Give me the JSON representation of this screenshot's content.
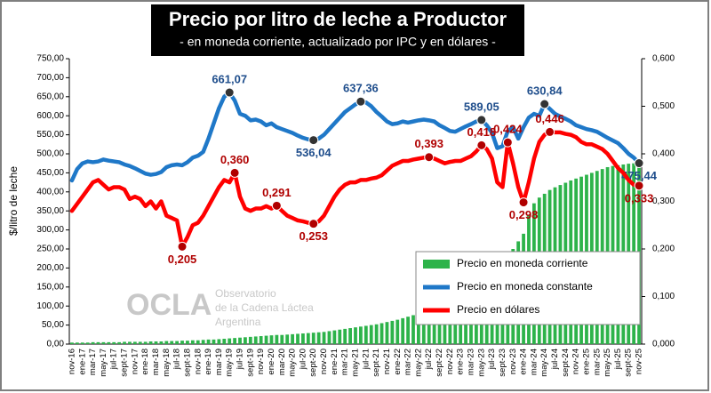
{
  "chart_data": {
    "type": "bar-line",
    "title": "Precio por litro de leche a Productor",
    "subtitle": "- en moneda corriente, actualizado por IPC y en dólares -",
    "y_label": "$/litro de leche",
    "legend": "lower right",
    "watermark": {
      "logo": "OCLA",
      "lines": [
        "Observatorio",
        "de la Cadena Láctea",
        "Argentina"
      ]
    },
    "categories": [
      "nov-16",
      null,
      "ene-17",
      null,
      "mar-17",
      null,
      "may-17",
      null,
      "jul-17",
      null,
      "sept-17",
      null,
      "nov-17",
      null,
      "ene-18",
      null,
      "mar-18",
      null,
      "may-18",
      null,
      "jul-18",
      null,
      "sept-18",
      null,
      "nov-18",
      null,
      "ene-19",
      null,
      "mar-19",
      null,
      "may-19",
      null,
      "jul-19",
      null,
      "sept-19",
      null,
      "nov-19",
      null,
      "ene-20",
      null,
      "mar-20",
      null,
      "may-20",
      null,
      "jul-20",
      null,
      "sept-20",
      null,
      "nov-20",
      null,
      "ene-21",
      null,
      "mar-21",
      null,
      "may-21",
      null,
      "jul-21",
      null,
      "sept-21",
      null,
      "nov-21",
      null,
      "ene-22",
      null,
      "mar-22",
      null,
      "may-22",
      null,
      "jul-22",
      null,
      "sept-22",
      null,
      "nov-22",
      null,
      "ene-23",
      null,
      "mar-23",
      null,
      "may-23",
      null,
      "jul-23",
      null,
      "sept-23",
      null,
      "nov-23",
      null,
      "ene-24",
      null,
      "mar-24",
      null,
      "may-24",
      null,
      "jul-24",
      null,
      "sept-24",
      null,
      "nov-24",
      null,
      "ene-25",
      null,
      "mar-25",
      null,
      "may-25",
      null,
      "jul-25",
      null,
      "sept-25",
      null,
      "nov-25"
    ],
    "series": [
      {
        "name": "Precio en moneda corriente",
        "kind": "bar",
        "color": "#2db34a",
        "values": [
          4,
          4,
          4,
          4,
          5,
          5,
          5,
          5,
          5,
          5,
          6,
          6,
          6,
          6,
          6,
          7,
          7,
          7,
          8,
          8,
          8,
          9,
          9,
          10,
          10,
          11,
          12,
          12,
          13,
          14,
          15,
          16,
          17,
          18,
          19,
          20,
          21,
          22,
          23,
          24,
          24,
          25,
          26,
          27,
          28,
          29,
          30,
          31,
          32,
          34,
          36,
          38,
          40,
          42,
          44,
          46,
          48,
          50,
          52,
          55,
          58,
          61,
          64,
          68,
          72,
          76,
          80,
          85,
          90,
          95,
          100,
          106,
          112,
          118,
          125,
          133,
          141,
          150,
          160,
          172,
          185,
          210,
          222,
          235,
          250,
          270,
          290,
          340,
          370,
          385,
          395,
          405,
          412,
          418,
          424,
          430,
          435,
          440,
          445,
          450,
          455,
          460,
          465,
          468,
          470,
          472,
          474,
          475,
          475
        ]
      },
      {
        "name": "Precio en moneda constante",
        "kind": "line",
        "color": "#1f78c8",
        "marker_color": "#333333",
        "label_color": "#1f4e8c",
        "values": [
          430,
          460,
          475,
          480,
          478,
          480,
          485,
          482,
          480,
          478,
          472,
          468,
          462,
          455,
          448,
          445,
          447,
          452,
          465,
          470,
          472,
          470,
          478,
          490,
          495,
          505,
          540,
          580,
          620,
          650,
          661.07,
          640,
          605,
          600,
          588,
          590,
          585,
          575,
          580,
          570,
          565,
          560,
          555,
          548,
          542,
          538,
          536.04,
          540,
          550,
          565,
          580,
          595,
          610,
          620,
          630,
          637.36,
          635,
          625,
          610,
          598,
          585,
          578,
          580,
          585,
          582,
          585,
          588,
          590,
          588,
          585,
          575,
          568,
          560,
          558,
          565,
          572,
          578,
          585,
          589.05,
          575,
          555,
          515,
          520,
          560,
          570,
          540,
          570,
          595,
          605,
          600,
          630.84,
          618,
          605,
          598,
          592,
          585,
          575,
          570,
          565,
          562,
          558,
          550,
          542,
          535,
          528,
          515,
          500,
          490,
          475.44
        ],
        "value_labels": [
          null,
          null,
          null,
          null,
          null,
          null,
          null,
          null,
          null,
          null,
          null,
          null,
          null,
          null,
          null,
          null,
          null,
          null,
          null,
          null,
          null,
          null,
          null,
          null,
          null,
          null,
          null,
          null,
          null,
          null,
          "661,07",
          null,
          null,
          null,
          null,
          null,
          null,
          null,
          null,
          null,
          null,
          null,
          null,
          null,
          null,
          null,
          "536,04",
          null,
          null,
          null,
          null,
          null,
          null,
          null,
          null,
          "637,36",
          null,
          null,
          null,
          null,
          null,
          null,
          null,
          null,
          null,
          null,
          null,
          null,
          null,
          null,
          null,
          null,
          null,
          null,
          null,
          null,
          null,
          null,
          "589,05",
          null,
          null,
          null,
          null,
          null,
          null,
          null,
          null,
          null,
          null,
          null,
          "630,84",
          null,
          null,
          null,
          null,
          null,
          null,
          null,
          null,
          null,
          null,
          null,
          null,
          null,
          null,
          null,
          null,
          null,
          "475,44"
        ]
      },
      {
        "name": "Precio en dólares",
        "kind": "line",
        "axis": "y2",
        "color": "#ff0000",
        "marker_color": "#b00000",
        "label_color": "#b00000",
        "values": [
          0.28,
          0.295,
          0.31,
          0.325,
          0.34,
          0.345,
          0.335,
          0.325,
          0.33,
          0.33,
          0.325,
          0.305,
          0.31,
          0.305,
          0.29,
          0.3,
          0.285,
          0.3,
          0.27,
          0.265,
          0.26,
          0.205,
          0.225,
          0.25,
          0.255,
          0.27,
          0.29,
          0.31,
          0.33,
          0.345,
          0.34,
          0.36,
          0.31,
          0.285,
          0.28,
          0.285,
          0.285,
          0.29,
          0.285,
          0.291,
          0.28,
          0.27,
          0.265,
          0.26,
          0.258,
          0.255,
          0.253,
          0.258,
          0.27,
          0.29,
          0.31,
          0.325,
          0.335,
          0.34,
          0.34,
          0.345,
          0.345,
          0.348,
          0.35,
          0.355,
          0.365,
          0.375,
          0.38,
          0.385,
          0.385,
          0.388,
          0.39,
          0.392,
          0.393,
          0.39,
          0.385,
          0.38,
          0.383,
          0.385,
          0.385,
          0.39,
          0.395,
          0.405,
          0.418,
          0.41,
          0.39,
          0.34,
          0.33,
          0.424,
          0.38,
          0.33,
          0.298,
          0.34,
          0.39,
          0.425,
          0.44,
          0.446,
          0.445,
          0.445,
          0.442,
          0.44,
          0.435,
          0.425,
          0.42,
          0.42,
          0.415,
          0.41,
          0.4,
          0.385,
          0.37,
          0.36,
          0.345,
          0.335,
          0.333
        ],
        "value_labels": [
          null,
          null,
          null,
          null,
          null,
          null,
          null,
          null,
          null,
          null,
          null,
          null,
          null,
          null,
          null,
          null,
          null,
          null,
          null,
          null,
          null,
          "0,205",
          null,
          null,
          null,
          null,
          null,
          null,
          null,
          null,
          null,
          "0,360",
          null,
          null,
          null,
          null,
          null,
          null,
          null,
          "0,291",
          null,
          null,
          null,
          null,
          null,
          null,
          "0,253",
          null,
          null,
          null,
          null,
          null,
          null,
          null,
          null,
          null,
          null,
          null,
          null,
          null,
          null,
          null,
          null,
          null,
          null,
          null,
          null,
          null,
          "0,393",
          null,
          null,
          null,
          null,
          null,
          null,
          null,
          null,
          null,
          "0,418",
          null,
          null,
          null,
          null,
          "0,424",
          null,
          null,
          "0,298",
          null,
          null,
          null,
          null,
          "0,446",
          null,
          null,
          null,
          null,
          null,
          null,
          null,
          null,
          null,
          null,
          null,
          null,
          null,
          null,
          null,
          null,
          "0,333"
        ]
      }
    ],
    "ylim": [
      0,
      750
    ],
    "yticks": [
      {
        "value": 0,
        "label": "0,00"
      },
      {
        "value": 50,
        "label": "50,00"
      },
      {
        "value": 100,
        "label": "100,00"
      },
      {
        "value": 150,
        "label": "150,00"
      },
      {
        "value": 200,
        "label": "200,00"
      },
      {
        "value": 250,
        "label": "250,00"
      },
      {
        "value": 300,
        "label": "300,00"
      },
      {
        "value": 350,
        "label": "350,00"
      },
      {
        "value": 400,
        "label": "400,00"
      },
      {
        "value": 450,
        "label": "450,00"
      },
      {
        "value": 500,
        "label": "500,00"
      },
      {
        "value": 550,
        "label": "550,00"
      },
      {
        "value": 600,
        "label": "600,00"
      },
      {
        "value": 650,
        "label": "650,00"
      },
      {
        "value": 700,
        "label": "700,00"
      },
      {
        "value": 750,
        "label": "750,00"
      }
    ],
    "y2lim": [
      0,
      0.6
    ],
    "y2ticks": [
      {
        "value": 0,
        "label": "0,000"
      },
      {
        "value": 0.1,
        "label": "0,100"
      },
      {
        "value": 0.2,
        "label": "0,200"
      },
      {
        "value": 0.3,
        "label": "0,300"
      },
      {
        "value": 0.4,
        "label": "0,400"
      },
      {
        "value": 0.5,
        "label": "0,500"
      },
      {
        "value": 0.6,
        "label": "0,600"
      }
    ]
  }
}
